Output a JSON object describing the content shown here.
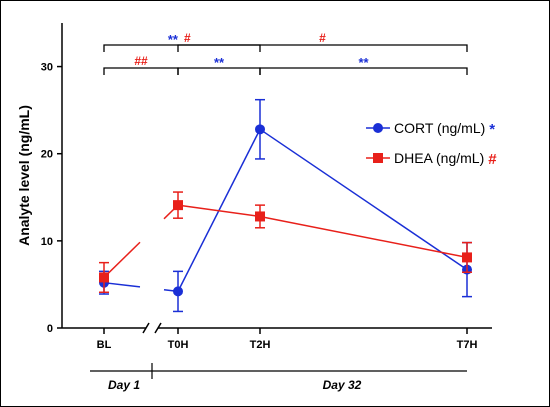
{
  "chart_data": {
    "type": "line",
    "ylabel": "Analyte level (ng/mL)",
    "ylim": [
      0,
      35
    ],
    "yticks": [
      0,
      10,
      20,
      30
    ],
    "categories": [
      "BL",
      "T0H",
      "T2H",
      "T7H"
    ],
    "x_hours": [
      -20,
      0,
      2,
      7
    ],
    "axis_break_between": [
      "BL",
      "T0H"
    ],
    "series": [
      {
        "name": "CORT (ng/mL)",
        "marker": "circle",
        "color": "#1a2fd6",
        "sig_symbol": "*",
        "values": [
          5.2,
          4.2,
          22.8,
          6.7
        ],
        "errors": [
          1.3,
          2.3,
          3.4,
          3.1
        ]
      },
      {
        "name": "DHEA (ng/mL)",
        "marker": "square",
        "color": "#e8201a",
        "sig_symbol": "#",
        "values": [
          5.8,
          14.1,
          12.8,
          8.1
        ],
        "errors": [
          1.7,
          1.5,
          1.3,
          1.7
        ]
      }
    ],
    "significance": [
      {
        "from": "BL",
        "to": "T2H",
        "level": 1,
        "blue": "**",
        "red": "#"
      },
      {
        "from": "BL",
        "to": "T0H",
        "level": 0,
        "blue": "",
        "red": "##"
      },
      {
        "from": "T0H",
        "to": "T2H",
        "level": 0,
        "blue": "**",
        "red": ""
      },
      {
        "from": "T0H",
        "to": "T7H",
        "level": 1,
        "blue": "",
        "red": "#"
      },
      {
        "from": "T2H",
        "to": "T7H",
        "level": 0,
        "blue": "**",
        "red": ""
      }
    ],
    "days": [
      {
        "label": "Day 1",
        "from": "BL",
        "to": "BL"
      },
      {
        "label": "Day 32",
        "from": "T0H",
        "to": "T7H"
      }
    ],
    "legend": "right"
  }
}
